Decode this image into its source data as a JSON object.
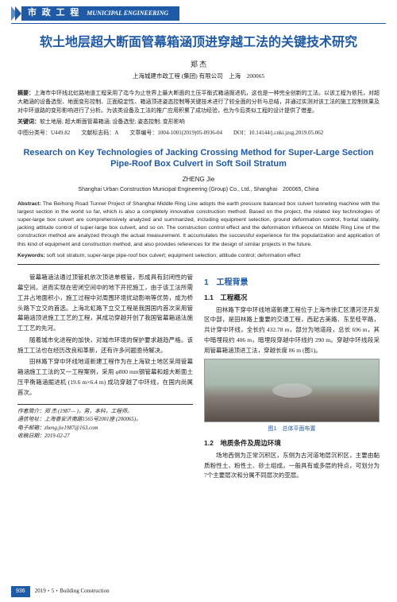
{
  "colors": {
    "blue": "#1f5aa6",
    "blue_light": "#5b8cc2",
    "text": "#222222",
    "caption_blue": "#1f5aa6"
  },
  "header": {
    "label_cn": "市 政 工 程",
    "label_en": "MUNICIPAL ENGINEERING"
  },
  "title_cn": "软土地层超大断面管幕箱涵顶进穿越工法的关键技术研究",
  "author_cn": "郑 杰",
  "affil_cn": "上海城建市政工程 (集团) 有限公司　上海　200065",
  "abstract_cn_label": "摘要：",
  "abstract_cn": "上海市中环线北虹路地道工程采用了迄今为止世界上最大断面的土压平衡式箱涵掘进机，这也是一种完全创新的工法。以该工程为依托，对超大箱涵的设备选型、地面变形控制、正面稳定性、箱涵顶进姿态控制等关键技术进行了较全面的分析与总结，并通过实测对该工法的施工控制效果及对中环道路的变形影响进行了分析。为该类设备及工法的推广应用积累了成功经验，也为今后类似工程的设计提供了借鉴。",
  "keywords_cn_label": "关键词：",
  "keywords_cn": "软土地层; 超大断面管幕箱涵; 设备选型; 姿态控制; 变形影响",
  "meta": {
    "clc_label": "中图分类号：",
    "clc": "U449.82",
    "doc_code_label": "文献标志码：",
    "doc_code": "A",
    "article_no_label": "文章编号：",
    "article_no": "1004-1001(2019)05-0936-04",
    "doi_label": "DOI：",
    "doi": "10.14144/j.cnki.jzsg.2019.05.062"
  },
  "title_en": "Research on Key Technologies of Jacking Crossing Method for Super-Large Section Pipe-Roof Box Culvert in Soft Soil Stratum",
  "author_en": "ZHENG Jie",
  "affil_en": "Shanghai Urban Construction Municipal Engineering (Group) Co., Ltd., Shanghai　200065, China",
  "abstract_en_label": "Abstract:",
  "abstract_en": " The Beihong Road Tunnel Project of Shanghai Middle Ring Line adopts the earth pressure balanced box culvert tunneling machine with the largest section in the world so far, which is also a completely innovative construction method. Based on the project, the related key technologies of super-large box culvert are comprehensively analyzed and summarized, including equipment selection, ground deformation control, frontal stability, jacking attitude control of super-large box culvert, and so on. The construction control effect and the deformation influence on Middle Ring Line of the construction method are analyzed through the actual measurement. It accumulates the successful experience for the popularization and application of this kind of equipment and construction method, and also provides references for the design of similar projects in the future.",
  "keywords_en_label": "Keywords:",
  "keywords_en": " soft soil stratum; super-large pipe-roof box culvert; equipment selection; attitude control; deformation effect",
  "body": {
    "left": [
      {
        "t": "p",
        "v": "管幕箱涵法通过顶管机依次顶进单根管，形成具有封闭性的管幕空间。进而实现在密闭空间中的地下开挖施工，由于该工法所需工井占地面积小，施工过程中对周围环境扰动影响等优势，成为桥头路下立交的首选。上海北虹路下立交工程是我国国内首次采用管幕箱涵顶进施工工艺的工程，其成功穿越开创了我国管幕箱涵法施工工艺的先河。"
      },
      {
        "t": "p",
        "v": "随着城市化进程的加快，对城市环境的保护要求越趋严格。该施工工法也在经历改良和革新，还有许多问题亟待解决。"
      },
      {
        "t": "p",
        "v": "田林路下穿中环线地道新建工程作为在上海软土地区采用管幕箱涵施工工法的又一工程案例，采用 φ800 mm钢管幕和超大断面土压平衡箱涵掘进机 (19.6 m×6.4 m) 成功穿越了中环线，在国内尚属首次。"
      }
    ],
    "right": [
      {
        "t": "h1",
        "v": "1　工程背景"
      },
      {
        "t": "h2",
        "v": "1.1　工程概况"
      },
      {
        "t": "p",
        "v": "田林路下穿中环线地道新建工程位于上海市徐汇区漕河泾开发区中部，是田林路上重要的交通工程，西起古美路、东至桂平路，共计穿中环线，全长约 432.78 m，部分为地道段，总长 696 m，其中暗埋段约 406 m，暗埋段穿越中环线约 290 m。穿越中环线段采用管幕箱涵顶进工法，穿越长度 86 m (图1)。"
      },
      {
        "t": "fig",
        "cap": "图1　总体平面布置"
      },
      {
        "t": "h2",
        "v": "1.2　地质条件及周边环境"
      },
      {
        "t": "p",
        "v": "场地西侧为正常沉积区，东侧为古河道地层沉积区，主要由黏质粉性土、粉性土、砂土组成，一般具有或多层的特点，可划分为7个主要层次和分属不同层次的亚层。"
      }
    ]
  },
  "author_box": {
    "l1": "作者简介：郑 杰 (1987— )，男，本科，工程师。",
    "l2": "通信地址：上海普安济南路1565号2001座 (200065)。",
    "l3": "电子邮箱：zheng.jie1987@163.com",
    "l4": "收稿日期：2019-02-27"
  },
  "footer": {
    "page": "936",
    "issue": "2019・5・Building Construction"
  }
}
